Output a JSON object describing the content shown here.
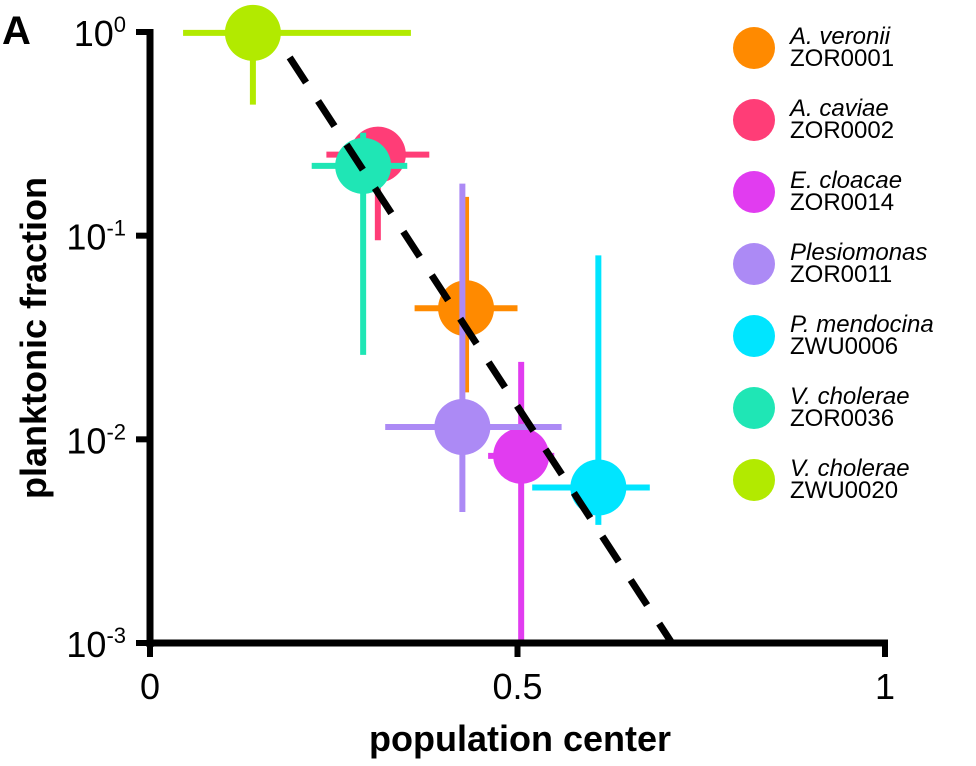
{
  "chart_data": {
    "type": "scatter",
    "panel_label": "A",
    "xlabel": "population center",
    "ylabel": "planktonic fraction",
    "xlim": [
      0,
      1
    ],
    "ylim": [
      0.001,
      1
    ],
    "yscale": "log",
    "x_ticks": [
      {
        "value": 0,
        "label": "0"
      },
      {
        "value": 0.5,
        "label": "0.5"
      },
      {
        "value": 1,
        "label": "1"
      }
    ],
    "y_ticks": [
      {
        "value": 1,
        "base": "10",
        "exp": "0"
      },
      {
        "value": 0.1,
        "base": "10",
        "exp": "-1"
      },
      {
        "value": 0.01,
        "base": "10",
        "exp": "-2"
      },
      {
        "value": 0.001,
        "base": "10",
        "exp": "-3"
      }
    ],
    "fit_line": {
      "style": "dashed",
      "color": "#000000",
      "x": [
        0.19,
        0.71
      ],
      "y": [
        0.75,
        0.001
      ]
    },
    "series": [
      {
        "species": "A. veronii",
        "strain": "ZOR0001",
        "color": "#FF8A00",
        "x": 0.43,
        "y": 0.044,
        "x_err": [
          0.36,
          0.5
        ],
        "y_err": [
          0.017,
          0.155
        ]
      },
      {
        "species": "A. caviae",
        "strain": "ZOR0002",
        "color": "#FF3D77",
        "x": 0.31,
        "y": 0.25,
        "x_err": [
          0.24,
          0.38
        ],
        "y_err": [
          0.095,
          0.33
        ]
      },
      {
        "species": "E. cloacae",
        "strain": "ZOR0014",
        "color": "#E13CF0",
        "x": 0.505,
        "y": 0.0083,
        "x_err": [
          0.46,
          0.55
        ],
        "y_err": [
          0.001,
          0.024
        ]
      },
      {
        "species": "Plesiomonas",
        "strain": "ZOR0011",
        "color": "#AC8AF5",
        "x": 0.425,
        "y": 0.0115,
        "x_err": [
          0.32,
          0.56
        ],
        "y_err": [
          0.0044,
          0.18
        ]
      },
      {
        "species": "P. mendocina",
        "strain": "ZWU0006",
        "color": "#00E5FF",
        "x": 0.61,
        "y": 0.0058,
        "x_err": [
          0.52,
          0.68
        ],
        "y_err": [
          0.0038,
          0.08
        ]
      },
      {
        "species": "V. cholerae",
        "strain": "ZOR0036",
        "color": "#1FE6B5",
        "x": 0.29,
        "y": 0.22,
        "x_err": [
          0.22,
          0.35
        ],
        "y_err": [
          0.026,
          0.32
        ]
      },
      {
        "species": "V. cholerae",
        "strain": "ZWU0020",
        "color": "#B2EA00",
        "x": 0.14,
        "y": 0.99,
        "x_err": [
          0.045,
          0.355
        ],
        "y_err": [
          0.44,
          1.0
        ]
      }
    ],
    "legend_position": "right"
  }
}
